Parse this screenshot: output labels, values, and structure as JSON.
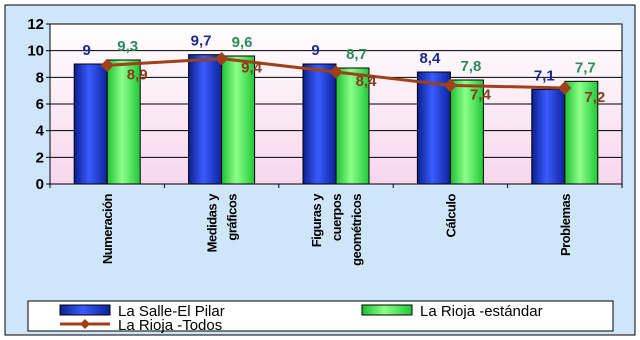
{
  "chart_data": {
    "type": "bar",
    "categories": [
      [
        "Numeración"
      ],
      [
        "Medidas y",
        "gráficos"
      ],
      [
        "Figuras y",
        "cuerpos",
        "geométricos"
      ],
      [
        "Cálculo"
      ],
      [
        "Problemas"
      ]
    ],
    "series": [
      {
        "name": "La Salle-El Pilar",
        "kind": "bar",
        "color": "#1f3fd6",
        "values": [
          9,
          9.7,
          9,
          8.4,
          7.1
        ],
        "labels": [
          "9",
          "9,7",
          "9",
          "8,4",
          "7,1"
        ],
        "label_color": "#1a2a8c"
      },
      {
        "name": "La Rioja -estándar",
        "kind": "bar",
        "color": "#33e04a",
        "values": [
          9.3,
          9.6,
          8.7,
          7.8,
          7.7
        ],
        "labels": [
          "9,3",
          "9,6",
          "8,7",
          "7,8",
          "7,7"
        ],
        "label_color": "#2e8a57"
      },
      {
        "name": "La Rioja -Todos",
        "kind": "line",
        "color": "#a0401a",
        "values": [
          8.9,
          9.4,
          8.4,
          7.4,
          7.2
        ],
        "labels": [
          "8,9",
          "9,4",
          "8,4",
          "7,4",
          "7,2"
        ],
        "label_color": "#8b3a1a"
      }
    ],
    "ylim": [
      0,
      12
    ],
    "yticks": [
      0,
      2,
      4,
      6,
      8,
      10,
      12
    ],
    "grid": true,
    "legend_position": "bottom",
    "colors": {
      "plot_bg_top": "#ffffff",
      "plot_bg_bottom": "#f7d6ec",
      "frame_bg": "#cfe6fa",
      "gridline": "#000000",
      "axis_text": "#000000"
    }
  }
}
